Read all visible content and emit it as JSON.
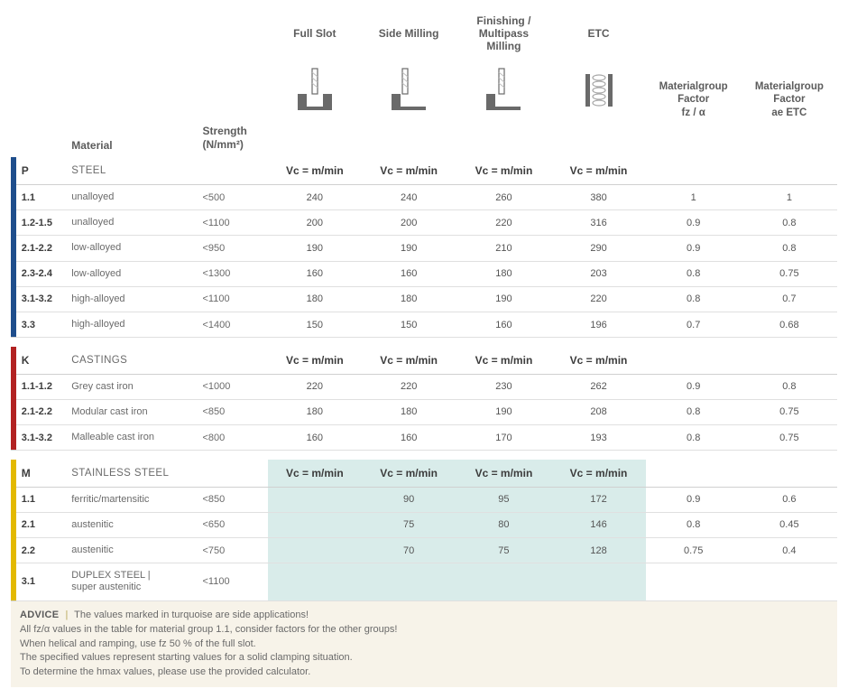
{
  "header": {
    "ops": [
      "Full Slot",
      "Side Milling",
      "Finishing /\nMultipass Milling",
      "ETC"
    ],
    "mgroup1": "Materialgroup\nFactor\nfz / α",
    "mgroup2": "Materialgroup\nFactor\nae ETC",
    "material_label": "Material",
    "strength_label": "Strength\n(N/mm²)",
    "vc_label": "Vc = m/min"
  },
  "colors": {
    "P": "#1f4e8c",
    "K": "#b22222",
    "M": "#e3b900",
    "turquoise": "#d9ecea",
    "advice_bg": "#f7f3e9"
  },
  "groups": [
    {
      "code": "P",
      "name": "STEEL",
      "color": "#1f4e8c",
      "rows": [
        {
          "code": "1.1",
          "mat": "unalloyed",
          "str": "<500",
          "v": [
            "240",
            "240",
            "260",
            "380"
          ],
          "f": [
            "1",
            "1"
          ]
        },
        {
          "code": "1.2-1.5",
          "mat": "unalloyed",
          "str": "<1100",
          "v": [
            "200",
            "200",
            "220",
            "316"
          ],
          "f": [
            "0.9",
            "0.8"
          ]
        },
        {
          "code": "2.1-2.2",
          "mat": "low-alloyed",
          "str": "<950",
          "v": [
            "190",
            "190",
            "210",
            "290"
          ],
          "f": [
            "0.9",
            "0.8"
          ]
        },
        {
          "code": "2.3-2.4",
          "mat": "low-alloyed",
          "str": "<1300",
          "v": [
            "160",
            "160",
            "180",
            "203"
          ],
          "f": [
            "0.8",
            "0.75"
          ]
        },
        {
          "code": "3.1-3.2",
          "mat": "high-alloyed",
          "str": "<1100",
          "v": [
            "180",
            "180",
            "190",
            "220"
          ],
          "f": [
            "0.8",
            "0.7"
          ]
        },
        {
          "code": "3.3",
          "mat": "high-alloyed",
          "str": "<1400",
          "v": [
            "150",
            "150",
            "160",
            "196"
          ],
          "f": [
            "0.7",
            "0.68"
          ]
        }
      ],
      "turq_cols": []
    },
    {
      "code": "K",
      "name": "CASTINGS",
      "color": "#b22222",
      "rows": [
        {
          "code": "1.1-1.2",
          "mat": "Grey cast iron",
          "str": "<1000",
          "v": [
            "220",
            "220",
            "230",
            "262"
          ],
          "f": [
            "0.9",
            "0.8"
          ]
        },
        {
          "code": "2.1-2.2",
          "mat": "Modular cast iron",
          "str": "<850",
          "v": [
            "180",
            "180",
            "190",
            "208"
          ],
          "f": [
            "0.8",
            "0.75"
          ]
        },
        {
          "code": "3.1-3.2",
          "mat": "Malleable cast iron",
          "str": "<800",
          "v": [
            "160",
            "160",
            "170",
            "193"
          ],
          "f": [
            "0.8",
            "0.75"
          ]
        }
      ],
      "turq_cols": []
    },
    {
      "code": "M",
      "name": "STAINLESS STEEL",
      "color": "#e3b900",
      "rows": [
        {
          "code": "1.1",
          "mat": "ferritic/martensitic",
          "str": "<850",
          "v": [
            "",
            "90",
            "95",
            "172"
          ],
          "f": [
            "0.9",
            "0.6"
          ]
        },
        {
          "code": "2.1",
          "mat": "austenitic",
          "str": "<650",
          "v": [
            "",
            "75",
            "80",
            "146"
          ],
          "f": [
            "0.8",
            "0.45"
          ]
        },
        {
          "code": "2.2",
          "mat": "austenitic",
          "str": "<750",
          "v": [
            "",
            "70",
            "75",
            "128"
          ],
          "f": [
            "0.75",
            "0.4"
          ]
        },
        {
          "code": "3.1",
          "mat": "DUPLEX STEEL |\nsuper austenitic",
          "str": "<1100",
          "v": [
            "",
            "",
            "",
            ""
          ],
          "f": [
            "",
            ""
          ]
        }
      ],
      "turq_cols": [
        0,
        1,
        2,
        3
      ]
    }
  ],
  "advice": {
    "title": "ADVICE",
    "lines": [
      "The values marked in turquoise are side applications!",
      "All fz/α values in the table for material group 1.1, consider factors for the other groups!",
      "When helical and ramping, use fz 50 % of the full slot.",
      "The specified values represent starting values for a solid clamping situation.",
      "To determine the hmax values, please use the provided calculator."
    ]
  }
}
